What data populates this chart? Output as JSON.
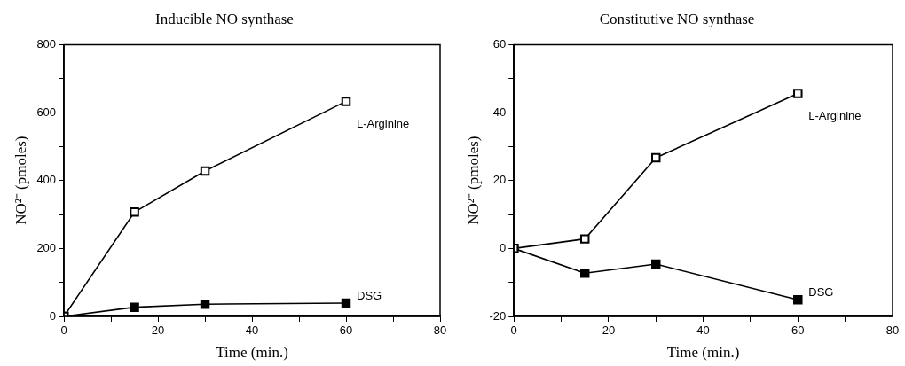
{
  "chart_data": [
    {
      "type": "line",
      "title": "Inducible NO synthase",
      "xlabel": "Time (min.)",
      "ylabel": "NO²⁻ (pmoles)",
      "x": [
        0,
        15,
        30,
        60
      ],
      "series": [
        {
          "name": "L-Arginine",
          "color": "#000000",
          "values": [
            0,
            307,
            428,
            633
          ]
        },
        {
          "name": "DSG",
          "color": "#000000",
          "values": [
            0,
            27,
            36,
            39
          ]
        }
      ],
      "xlim": [
        0,
        80
      ],
      "xticks": [
        0,
        {
          "value": 10,
          "label": null
        },
        20,
        {
          "value": 30,
          "label": null
        },
        40,
        {
          "value": 50,
          "label": null
        },
        60,
        {
          "value": 70,
          "label": null
        },
        80
      ],
      "ylim": [
        0,
        800
      ],
      "yticks": [
        0,
        {
          "value": 100,
          "label": null
        },
        200,
        {
          "value": 300,
          "label": null
        },
        400,
        {
          "value": 500,
          "label": null
        },
        600,
        {
          "value": 700,
          "label": null
        },
        800
      ],
      "grid": false,
      "legend": false,
      "marker": "square",
      "line_style": "solid"
    },
    {
      "type": "line",
      "title": "Constitutive NO synthase",
      "xlabel": "Time (min.)",
      "ylabel": "NO²⁻ (pmoles)",
      "x": [
        0,
        15,
        30,
        60
      ],
      "series": [
        {
          "name": "L-Arginine",
          "color": "#000000",
          "values": [
            0,
            2.8,
            26.7,
            45.6
          ]
        },
        {
          "name": "DSG",
          "color": "#000000",
          "values": [
            0,
            -7.3,
            -4.6,
            -15.1
          ]
        }
      ],
      "xlim": [
        0,
        80
      ],
      "xticks": [
        0,
        {
          "value": 10,
          "label": null
        },
        20,
        {
          "value": 30,
          "label": null
        },
        40,
        {
          "value": 50,
          "label": null
        },
        60,
        {
          "value": 70,
          "label": null
        },
        80
      ],
      "ylim": [
        -20,
        60
      ],
      "yticks": [
        -20,
        {
          "value": -10,
          "label": null
        },
        0,
        {
          "value": 10,
          "label": null
        },
        20,
        {
          "value": 30,
          "label": null
        },
        40,
        {
          "value": 50,
          "label": null
        },
        60
      ],
      "grid": false,
      "legend": false,
      "marker": "square",
      "line_style": "solid"
    }
  ]
}
